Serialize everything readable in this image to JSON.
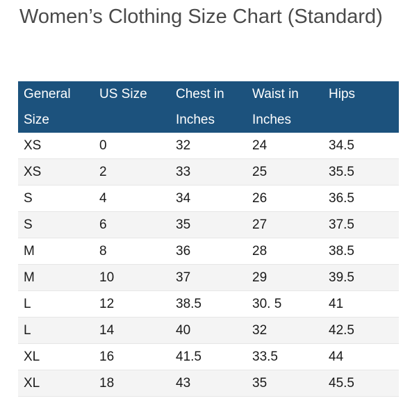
{
  "title": "Women’s Clothing Size Chart (Standard)",
  "table": {
    "headers": [
      [
        "General",
        "Size"
      ],
      [
        "US Size",
        ""
      ],
      [
        "Chest in",
        "Inches"
      ],
      [
        "Waist in",
        "Inches"
      ],
      [
        "Hips",
        ""
      ]
    ],
    "rows": [
      [
        "XS",
        "0",
        "32",
        "24",
        "34.5"
      ],
      [
        "XS",
        "2",
        "33",
        "25",
        "35.5"
      ],
      [
        "S",
        "4",
        "34",
        "26",
        "36.5"
      ],
      [
        "S",
        "6",
        "35",
        "27",
        "37.5"
      ],
      [
        "M",
        "8",
        "36",
        "28",
        "38.5"
      ],
      [
        "M",
        "10",
        "37",
        "29",
        "39.5"
      ],
      [
        "L",
        "12",
        "38.5",
        "30. 5",
        "41"
      ],
      [
        "L",
        "14",
        "40",
        "32",
        "42.5"
      ],
      [
        "XL",
        "16",
        "41.5",
        "33.5",
        "44"
      ],
      [
        "XL",
        "18",
        "43",
        "35",
        "45.5"
      ]
    ]
  },
  "colors": {
    "header_background": "#1c527d",
    "header_text": "#ffffff",
    "alt_row_background": "#f4f4f4",
    "title_text": "#4a4a4a"
  }
}
